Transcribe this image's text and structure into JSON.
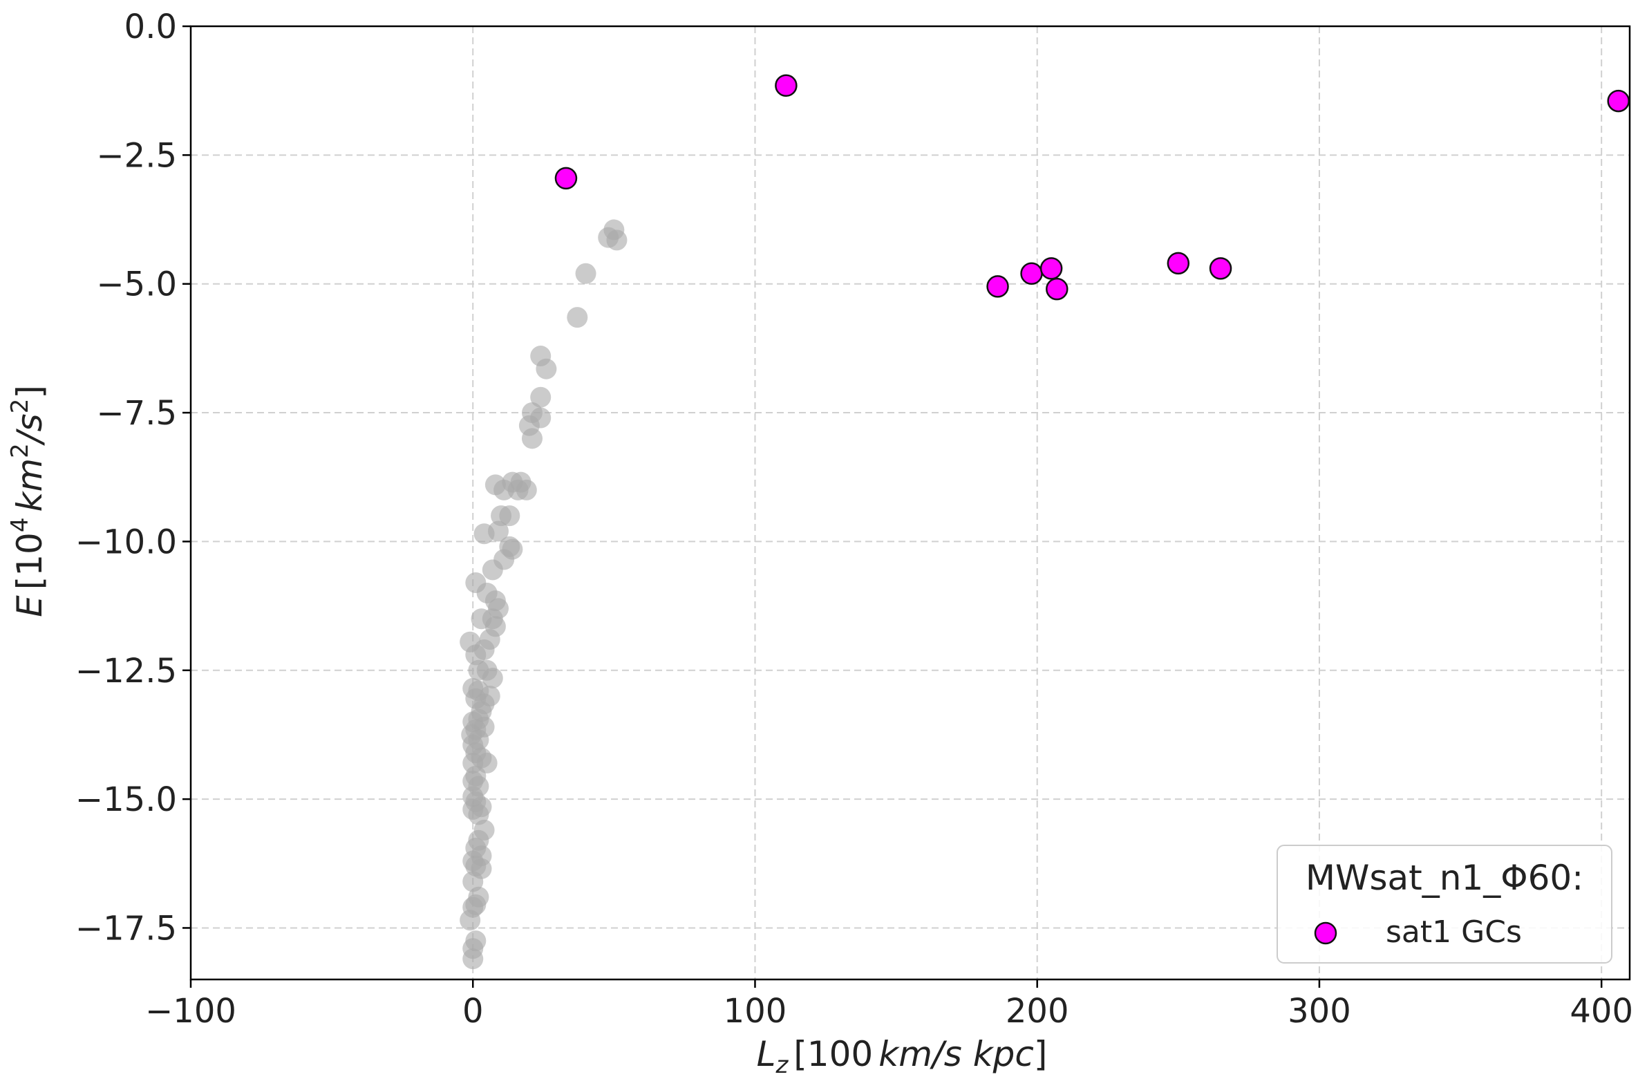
{
  "chart_data": {
    "type": "scatter",
    "title": "",
    "xlabel": "L_z [100 km/s kpc]",
    "xlabel_parts": {
      "var": "L",
      "sub": "z",
      "pre": "[100",
      "units": "km/s kpc",
      "post": "]"
    },
    "ylabel": "E [10^4 km^2/s^2]",
    "ylabel_parts": {
      "var": "E",
      "pre": "[10",
      "exp": "4",
      "units1": "km",
      "exp2": "2",
      "units2": "/s",
      "exp3": "2",
      "post": "]"
    },
    "xlim": [
      -100,
      410
    ],
    "ylim": [
      -18.5,
      0
    ],
    "xticks": [
      -100,
      0,
      100,
      200,
      300,
      400
    ],
    "xtick_labels": [
      "−100",
      "0",
      "100",
      "200",
      "300",
      "400"
    ],
    "yticks": [
      0,
      -2.5,
      -5,
      -7.5,
      -10,
      -12.5,
      -15,
      -17.5
    ],
    "ytick_labels": [
      "0.0",
      "−2.5",
      "−5.0",
      "−7.5",
      "−10.0",
      "−12.5",
      "−15.0",
      "−17.5"
    ],
    "grid": true,
    "legend": {
      "title": "MWsat_n1_Φ60:",
      "position": "lower-right",
      "entries": [
        "sat1 GCs"
      ]
    },
    "series": [
      {
        "name": "background GCs",
        "color": "#a8a8a8",
        "alpha": 0.6,
        "in_legend": false,
        "points": [
          [
            50,
            -3.95
          ],
          [
            51,
            -4.15
          ],
          [
            48,
            -4.1
          ],
          [
            40,
            -4.8
          ],
          [
            37,
            -5.65
          ],
          [
            24,
            -6.4
          ],
          [
            26,
            -6.65
          ],
          [
            24,
            -7.2
          ],
          [
            21,
            -7.5
          ],
          [
            24,
            -7.6
          ],
          [
            20,
            -7.75
          ],
          [
            21,
            -8.0
          ],
          [
            8,
            -8.9
          ],
          [
            11,
            -9.0
          ],
          [
            14,
            -8.85
          ],
          [
            17,
            -8.85
          ],
          [
            19,
            -9.0
          ],
          [
            16,
            -9.0
          ],
          [
            13,
            -9.5
          ],
          [
            10,
            -9.5
          ],
          [
            9,
            -9.8
          ],
          [
            4,
            -9.85
          ],
          [
            13,
            -10.1
          ],
          [
            14,
            -10.15
          ],
          [
            11,
            -10.35
          ],
          [
            7,
            -10.55
          ],
          [
            1,
            -10.8
          ],
          [
            5,
            -11.0
          ],
          [
            8,
            -11.15
          ],
          [
            9,
            -11.3
          ],
          [
            3,
            -11.5
          ],
          [
            7,
            -11.5
          ],
          [
            8,
            -11.65
          ],
          [
            6,
            -11.9
          ],
          [
            -1,
            -11.95
          ],
          [
            4,
            -12.1
          ],
          [
            1,
            -12.2
          ],
          [
            2,
            -12.5
          ],
          [
            5,
            -12.5
          ],
          [
            7,
            -12.65
          ],
          [
            0,
            -12.85
          ],
          [
            2,
            -12.9
          ],
          [
            1,
            -13.05
          ],
          [
            6,
            -13.0
          ],
          [
            4,
            -13.15
          ],
          [
            3,
            -13.3
          ],
          [
            2,
            -13.45
          ],
          [
            0,
            -13.5
          ],
          [
            1,
            -13.65
          ],
          [
            4,
            -13.6
          ],
          [
            -0.5,
            -13.75
          ],
          [
            2,
            -13.85
          ],
          [
            0,
            -13.95
          ],
          [
            1,
            -14.1
          ],
          [
            3,
            -14.2
          ],
          [
            5,
            -14.3
          ],
          [
            0,
            -14.3
          ],
          [
            1,
            -14.55
          ],
          [
            0,
            -14.65
          ],
          [
            2,
            -14.75
          ],
          [
            0,
            -14.95
          ],
          [
            1,
            -15.05
          ],
          [
            3,
            -15.15
          ],
          [
            0,
            -15.2
          ],
          [
            2,
            -15.3
          ],
          [
            4,
            -15.6
          ],
          [
            2,
            -15.8
          ],
          [
            1,
            -15.95
          ],
          [
            3,
            -16.1
          ],
          [
            0,
            -16.2
          ],
          [
            1,
            -16.3
          ],
          [
            3,
            -16.35
          ],
          [
            0,
            -16.6
          ],
          [
            2,
            -16.9
          ],
          [
            1,
            -17.05
          ],
          [
            0,
            -17.1
          ],
          [
            -1,
            -17.35
          ],
          [
            1,
            -17.75
          ],
          [
            0,
            -17.9
          ],
          [
            0,
            -18.1
          ]
        ]
      },
      {
        "name": "sat1 GCs",
        "color": "#ff00ff",
        "edgecolor": "#111111",
        "in_legend": true,
        "points": [
          [
            111,
            -1.15
          ],
          [
            33,
            -2.95
          ],
          [
            406,
            -1.45
          ],
          [
            186,
            -5.05
          ],
          [
            198,
            -4.8
          ],
          [
            205,
            -4.7
          ],
          [
            207,
            -5.1
          ],
          [
            250,
            -4.6
          ],
          [
            265,
            -4.7
          ]
        ]
      }
    ]
  }
}
